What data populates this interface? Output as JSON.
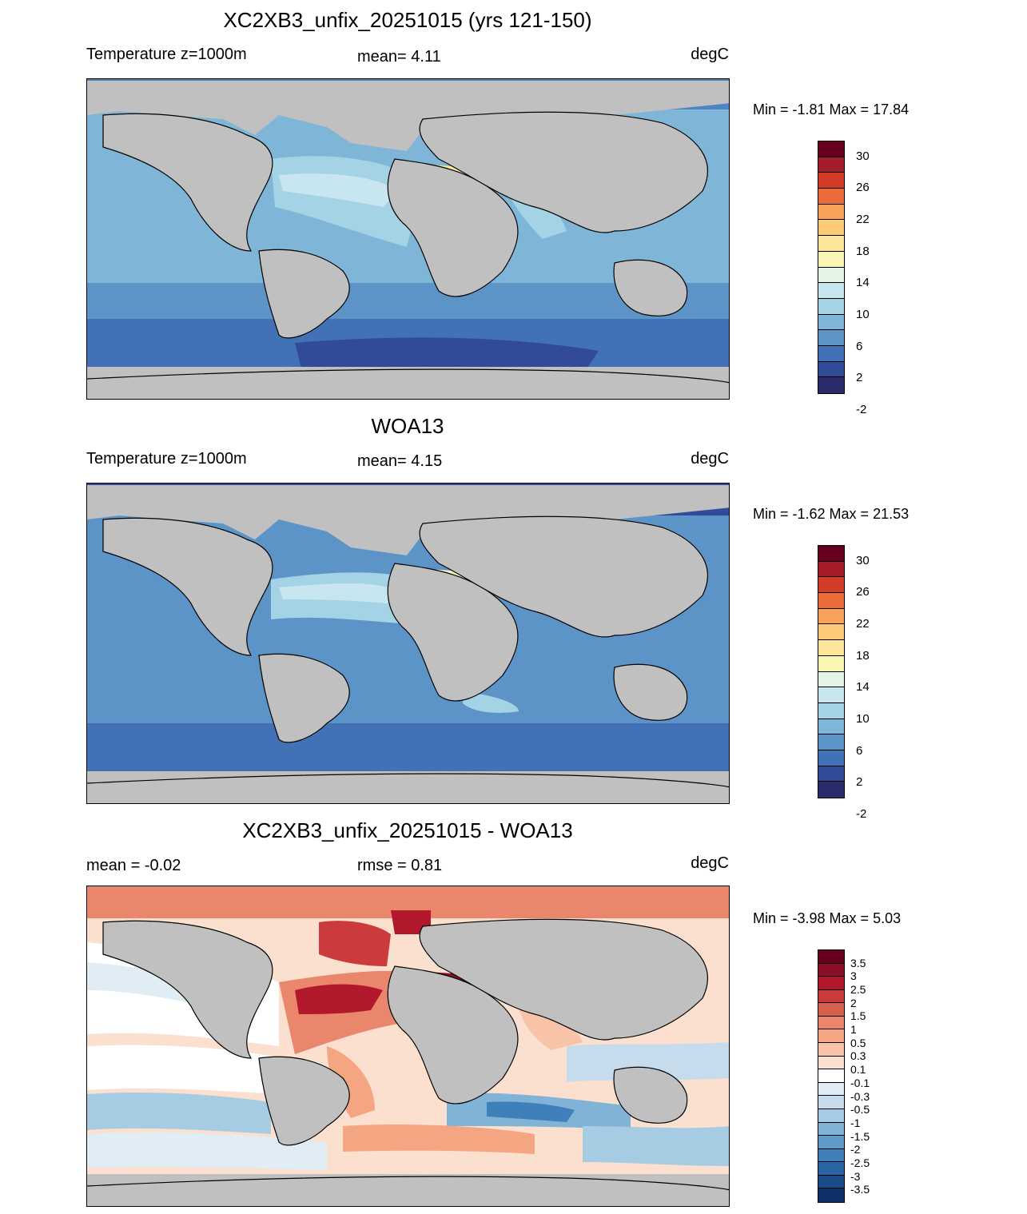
{
  "panels": [
    {
      "title": "XC2XB3_unfix_20251015 (yrs 121-150)",
      "left_label": "Temperature z=1000m",
      "mid_label": "mean=   4.11",
      "units": "degC",
      "minmax": "Min =  -1.81 Max =  17.84",
      "colorbar": {
        "labels": [
          "30",
          "26",
          "22",
          "18",
          "14",
          "10",
          "6",
          "2",
          "-2"
        ],
        "colors": [
          "#67001f",
          "#a51c2a",
          "#d33c28",
          "#ec6b3a",
          "#f8a25c",
          "#fdca79",
          "#fde59c",
          "#f9f5b4",
          "#e6f4e6",
          "#c8e6ef",
          "#a4d3e6",
          "#7fb6d8",
          "#5c94c8",
          "#4271b5",
          "#324b98",
          "#2b2a6b"
        ]
      }
    },
    {
      "title": "WOA13",
      "left_label": "Temperature z=1000m",
      "mid_label": "mean=   4.15",
      "units": "degC",
      "minmax": "Min =  -1.62 Max =  21.53",
      "colorbar": {
        "labels": [
          "30",
          "26",
          "22",
          "18",
          "14",
          "10",
          "6",
          "2",
          "-2"
        ],
        "colors": [
          "#67001f",
          "#a51c2a",
          "#d33c28",
          "#ec6b3a",
          "#f8a25c",
          "#fdca79",
          "#fde59c",
          "#f9f5b4",
          "#e6f4e6",
          "#c8e6ef",
          "#a4d3e6",
          "#7fb6d8",
          "#5c94c8",
          "#4271b5",
          "#324b98",
          "#2b2a6b"
        ]
      }
    },
    {
      "title": "XC2XB3_unfix_20251015 - WOA13",
      "left_label": "mean =  -0.02",
      "mid_label": "rmse =   0.81",
      "units": "degC",
      "minmax": "Min =  -3.98 Max =   5.03",
      "colorbar": {
        "labels": [
          "3.5",
          "3",
          "2.5",
          "2",
          "1.5",
          "1",
          "0.5",
          "0.3",
          "0.1",
          "-0.1",
          "-0.3",
          "-0.5",
          "-1",
          "-1.5",
          "-2",
          "-2.5",
          "-3",
          "-3.5"
        ],
        "colors": [
          "#67001f",
          "#8c0d25",
          "#b2182b",
          "#cb3b3b",
          "#d6604d",
          "#e9866c",
          "#f4a582",
          "#f8c3a6",
          "#fbe0d0",
          "#ffffff",
          "#e1edf5",
          "#c6dcec",
          "#a5cce3",
          "#80b3d6",
          "#5e9bc9",
          "#3f80ba",
          "#2a65a3",
          "#1a4c8a",
          "#0d3166"
        ]
      }
    }
  ]
}
